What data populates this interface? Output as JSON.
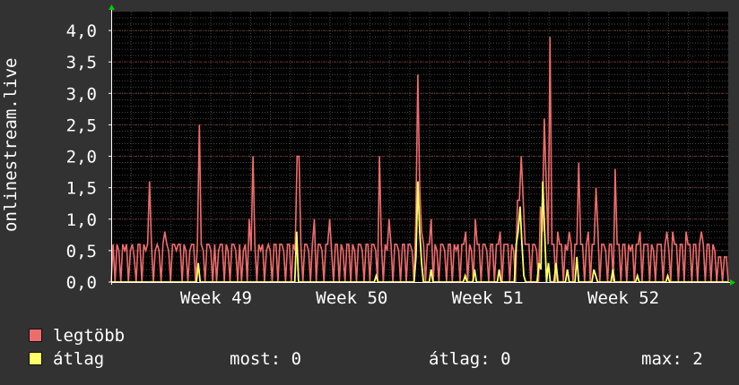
{
  "chart_data": {
    "type": "line",
    "ylabel": "onlinestream.live",
    "ylim": [
      0,
      4.3
    ],
    "yticks": [
      "0,0",
      "0,5",
      "1,0",
      "1,5",
      "2,0",
      "2,5",
      "3,0",
      "3,5",
      "4,0"
    ],
    "ytick_values": [
      0,
      0.5,
      1.0,
      1.5,
      2.0,
      2.5,
      3.0,
      3.5,
      4.0
    ],
    "xticks": [
      "Week 49",
      "Week 50",
      "Week 51",
      "Week 52"
    ],
    "xtick_positions": [
      0.17,
      0.39,
      0.61,
      0.83
    ],
    "grid": true,
    "colors": {
      "legtobb": "#f06c6c",
      "atlag": "#ffff66",
      "grid_major": "#7a3a3a",
      "grid_minor": "#454545",
      "axis": "#ffffff",
      "arrow": "#00cc00"
    },
    "series": [
      {
        "name": "legtöbb",
        "values": [
          0,
          0.6,
          0,
          0.6,
          0.5,
          0,
          0.6,
          0.5,
          0.6,
          0,
          0.5,
          0.6,
          0.4,
          0,
          0.6,
          0.6,
          0,
          0.6,
          0.5,
          0.6,
          1.6,
          0.6,
          0,
          0.5,
          0.6,
          0.5,
          0,
          0.6,
          0.8,
          0.6,
          0.5,
          0,
          0.6,
          0.6,
          0.5,
          0.6,
          0.6,
          0,
          0.6,
          0.5,
          0,
          0.5,
          0.6,
          0.6,
          0,
          0.6,
          2.5,
          0.6,
          0.5,
          0,
          0.6,
          0.6,
          0.5,
          0,
          0.6,
          0,
          0.5,
          0.6,
          0.6,
          0,
          0.6,
          0.5,
          0,
          0.6,
          0.6,
          0.5,
          0,
          0.6,
          0,
          0.5,
          0.6,
          0,
          1.0,
          0.5,
          2.0,
          0.6,
          0,
          0.6,
          0.5,
          0.6,
          0,
          0.5,
          0.6,
          0.5,
          0,
          0.6,
          0.6,
          0,
          0.6,
          0.6,
          0.5,
          0,
          0.6,
          0.6,
          0,
          0.6,
          0.5,
          2.0,
          2.0,
          0.6,
          0,
          0.6,
          0.6,
          0.5,
          0,
          0.6,
          1.0,
          0,
          0.6,
          0.6,
          0.5,
          0,
          0.6,
          0.6,
          1.0,
          0.5,
          0,
          0.6,
          0.6,
          0,
          0.6,
          0.5,
          0,
          0.6,
          0.6,
          0,
          0.6,
          0.5,
          0,
          0.6,
          0.6,
          0.5,
          0,
          0.6,
          0.6,
          0,
          0.6,
          0.6,
          0.5,
          0,
          2.0,
          0.6,
          0,
          0.6,
          0.5,
          1.0,
          0.6,
          0,
          0.6,
          0.6,
          0.5,
          0,
          0.6,
          0.6,
          0,
          0.6,
          0.6,
          0.5,
          0,
          1.0,
          3.3,
          1.5,
          0.8,
          0.6,
          0,
          0.6,
          0.6,
          1.0,
          0,
          0.6,
          0.5,
          0,
          0.6,
          0.6,
          0.5,
          0,
          0.6,
          0.6,
          0,
          0.6,
          0.5,
          0.6,
          0,
          0.6,
          0.6,
          0.8,
          0,
          0.6,
          0.5,
          0,
          1.0,
          0.6,
          0.6,
          0,
          0.6,
          0.6,
          0.5,
          0,
          0.6,
          0.6,
          0,
          0.6,
          0.6,
          0.8,
          0,
          0.6,
          0.6,
          0.6,
          0,
          0.6,
          0.5,
          0,
          1.3,
          1.3,
          2.0,
          1.3,
          0.6,
          0.6,
          0.6,
          0,
          0.6,
          0.6,
          0.5,
          0,
          1.2,
          0.8,
          2.6,
          1.6,
          0.6,
          3.9,
          0.6,
          0.6,
          0,
          0.8,
          0.6,
          0.6,
          0,
          0.6,
          0.5,
          0.8,
          0.6,
          0,
          0.6,
          0.6,
          1.9,
          0.6,
          0.6,
          0,
          0.6,
          0.8,
          0,
          0.6,
          0.6,
          1.5,
          0.8,
          0,
          0.6,
          0.6,
          0.5,
          0,
          0.6,
          0.6,
          0,
          1.8,
          0.6,
          0.6,
          0,
          0.6,
          0.6,
          0,
          0.6,
          0.5,
          0.6,
          0,
          0.6,
          0.6,
          0.8,
          0,
          0.6,
          0.6,
          0.6,
          0,
          0.6,
          0.5,
          0,
          0.6,
          0.6,
          0.6,
          0,
          0.6,
          0.8,
          0.5,
          0,
          0.8,
          0.6,
          0.6,
          0,
          0.6,
          0.6,
          0,
          0.8,
          0.6,
          0.6,
          0,
          0.6,
          0.6,
          0,
          0.6,
          0.8,
          0.6,
          0,
          0.6,
          0.6,
          0,
          0.6,
          0.5,
          0,
          0.4,
          0.4,
          0,
          0.4,
          0.4,
          0
        ],
        "color": "#f06c6c"
      },
      {
        "name": "átlag",
        "values": [
          0,
          0,
          0,
          0,
          0,
          0,
          0,
          0,
          0,
          0,
          0,
          0,
          0,
          0,
          0,
          0,
          0,
          0,
          0,
          0,
          0,
          0,
          0,
          0,
          0,
          0,
          0,
          0,
          0,
          0,
          0,
          0,
          0,
          0,
          0,
          0,
          0,
          0,
          0,
          0,
          0,
          0,
          0,
          0,
          0,
          0,
          0.3,
          0,
          0,
          0,
          0,
          0,
          0,
          0,
          0,
          0,
          0,
          0,
          0,
          0,
          0,
          0,
          0,
          0,
          0,
          0,
          0,
          0,
          0,
          0,
          0,
          0,
          0,
          0,
          0,
          0,
          0,
          0,
          0,
          0,
          0,
          0,
          0,
          0,
          0,
          0,
          0,
          0,
          0,
          0,
          0,
          0,
          0,
          0,
          0,
          0,
          0,
          0,
          0.8,
          0,
          0,
          0,
          0,
          0,
          0,
          0,
          0,
          0,
          0,
          0,
          0,
          0,
          0,
          0,
          0,
          0,
          0,
          0,
          0,
          0,
          0,
          0,
          0,
          0,
          0,
          0,
          0,
          0,
          0,
          0,
          0,
          0,
          0,
          0,
          0,
          0,
          0,
          0,
          0,
          0,
          0.1,
          0,
          0,
          0,
          0,
          0,
          0,
          0,
          0,
          0,
          0,
          0,
          0,
          0,
          0,
          0,
          0,
          0,
          0,
          0,
          0,
          0.4,
          1.6,
          0.8,
          0.3,
          0,
          0,
          0,
          0,
          0.2,
          0,
          0,
          0,
          0,
          0,
          0,
          0,
          0,
          0,
          0,
          0,
          0,
          0,
          0,
          0,
          0,
          0,
          0.1,
          0,
          0,
          0,
          0,
          0.2,
          0,
          0,
          0,
          0,
          0,
          0,
          0,
          0,
          0,
          0,
          0,
          0,
          0.2,
          0,
          0,
          0,
          0,
          0,
          0,
          0,
          0,
          0.6,
          0.8,
          1.2,
          0.6,
          0.1,
          0,
          0,
          0,
          0,
          0,
          0,
          0,
          0.3,
          0.2,
          1.6,
          0.8,
          0,
          0.3,
          0,
          0,
          0,
          0.3,
          0,
          0,
          0,
          0,
          0,
          0.2,
          0,
          0,
          0,
          0,
          0.4,
          0,
          0,
          0,
          0,
          0,
          0,
          0,
          0,
          0.2,
          0.1,
          0,
          0,
          0,
          0,
          0,
          0,
          0,
          0,
          0.2,
          0,
          0,
          0,
          0,
          0,
          0,
          0,
          0,
          0,
          0,
          0,
          0,
          0.1,
          0,
          0,
          0,
          0,
          0,
          0,
          0,
          0,
          0,
          0,
          0,
          0,
          0,
          0,
          0,
          0.1,
          0,
          0,
          0,
          0,
          0,
          0,
          0,
          0,
          0,
          0,
          0,
          0,
          0,
          0,
          0,
          0,
          0,
          0,
          0,
          0,
          0,
          0,
          0,
          0,
          0,
          0,
          0,
          0,
          0,
          0,
          0,
          0
        ],
        "color": "#ffff66"
      }
    ]
  },
  "legend": {
    "max_label": "legtöbb",
    "avg_label": "átlag",
    "most_label": "most:",
    "most_value": "0",
    "avg_stat_label": "átlag:",
    "avg_stat_value": "0",
    "maxstat_label": "max:",
    "maxstat_value": "2"
  }
}
